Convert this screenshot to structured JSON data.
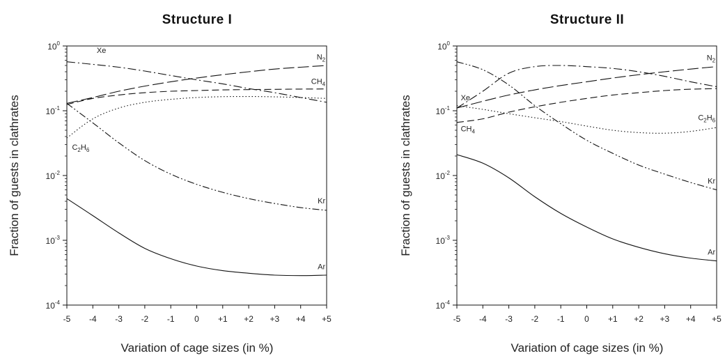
{
  "chart_data": [
    {
      "type": "line",
      "title": "Structure I",
      "xlabel": "Variation of cage sizes (in %)",
      "ylabel": "Fraction of guests in clathrates",
      "x": [
        -5,
        -4,
        -3,
        -2,
        -1,
        0,
        1,
        2,
        3,
        4,
        5
      ],
      "xticks": [
        "-5",
        "-4",
        "-3",
        "-2",
        "-1",
        "0",
        "+1",
        "+2",
        "+3",
        "+4",
        "+5"
      ],
      "ylim": [
        0.0001,
        1
      ],
      "yscale": "log",
      "yticks": [
        {
          "base": "10",
          "exp": "0"
        },
        {
          "base": "10",
          "exp": "-1"
        },
        {
          "base": "10",
          "exp": "-2"
        },
        {
          "base": "10",
          "exp": "-3"
        },
        {
          "base": "10",
          "exp": "-4"
        }
      ],
      "series": [
        {
          "name": "Xe",
          "label": {
            "main": "Xe",
            "sub": ""
          },
          "dash": "dashdot",
          "values": [
            0.57,
            0.52,
            0.47,
            0.41,
            0.35,
            0.3,
            0.26,
            0.22,
            0.19,
            0.16,
            0.135
          ]
        },
        {
          "name": "N2",
          "label": {
            "main": "N",
            "sub": "2"
          },
          "dash": "longdash",
          "values": [
            0.13,
            0.16,
            0.2,
            0.24,
            0.28,
            0.32,
            0.36,
            0.4,
            0.44,
            0.47,
            0.5
          ]
        },
        {
          "name": "CH4",
          "label": {
            "main": "CH",
            "sub": "4"
          },
          "dash": "dash",
          "values": [
            0.125,
            0.155,
            0.175,
            0.19,
            0.2,
            0.205,
            0.21,
            0.212,
            0.214,
            0.216,
            0.217
          ]
        },
        {
          "name": "C2H6",
          "label": {
            "main": "C",
            "sub": "2",
            "main2": "H",
            "sub2": "6"
          },
          "dash": "dot",
          "values": [
            0.038,
            0.075,
            0.11,
            0.135,
            0.15,
            0.16,
            0.165,
            0.166,
            0.164,
            0.16,
            0.155
          ]
        },
        {
          "name": "Kr",
          "label": {
            "main": "Kr",
            "sub": ""
          },
          "dash": "dashdotdot",
          "values": [
            0.13,
            0.065,
            0.032,
            0.017,
            0.0105,
            0.0073,
            0.0055,
            0.0044,
            0.0037,
            0.0032,
            0.0029
          ]
        },
        {
          "name": "Ar",
          "label": {
            "main": "Ar",
            "sub": ""
          },
          "dash": "solid",
          "values": [
            0.0044,
            0.0024,
            0.0013,
            0.00075,
            0.00052,
            0.0004,
            0.00034,
            0.00031,
            0.00029,
            0.000285,
            0.00029
          ]
        }
      ]
    },
    {
      "type": "line",
      "title": "Structure II",
      "xlabel": "Variation of cage sizes (in %)",
      "ylabel": "Fraction of guests in clathrates",
      "x": [
        -5,
        -4,
        -3,
        -2,
        -1,
        0,
        1,
        2,
        3,
        4,
        5
      ],
      "xticks": [
        "-5",
        "-4",
        "-3",
        "-2",
        "-1",
        "0",
        "+1",
        "+2",
        "+3",
        "+4",
        "+5"
      ],
      "ylim": [
        0.0001,
        1
      ],
      "yscale": "log",
      "yticks": [
        {
          "base": "10",
          "exp": "0"
        },
        {
          "base": "10",
          "exp": "-1"
        },
        {
          "base": "10",
          "exp": "-2"
        },
        {
          "base": "10",
          "exp": "-3"
        },
        {
          "base": "10",
          "exp": "-4"
        }
      ],
      "series": [
        {
          "name": "Xe",
          "label": {
            "main": "Xe",
            "sub": ""
          },
          "dash": "dashdot",
          "values": [
            0.11,
            0.2,
            0.38,
            0.48,
            0.5,
            0.48,
            0.45,
            0.4,
            0.34,
            0.28,
            0.235
          ]
        },
        {
          "name": "N2",
          "label": {
            "main": "N",
            "sub": "2"
          },
          "dash": "longdash",
          "values": [
            0.11,
            0.14,
            0.175,
            0.21,
            0.245,
            0.28,
            0.32,
            0.36,
            0.4,
            0.44,
            0.48
          ]
        },
        {
          "name": "CH4",
          "label": {
            "main": "CH",
            "sub": "4"
          },
          "dash": "dash",
          "values": [
            0.066,
            0.075,
            0.095,
            0.115,
            0.135,
            0.155,
            0.175,
            0.19,
            0.205,
            0.215,
            0.22
          ]
        },
        {
          "name": "C2H6",
          "label": {
            "main": "C",
            "sub": "2",
            "main2": "H",
            "sub2": "6"
          },
          "dash": "dot",
          "values": [
            0.12,
            0.105,
            0.09,
            0.078,
            0.068,
            0.058,
            0.05,
            0.046,
            0.045,
            0.048,
            0.055
          ]
        },
        {
          "name": "Kr",
          "label": {
            "main": "Kr",
            "sub": ""
          },
          "dash": "dashdotdot",
          "values": [
            0.57,
            0.43,
            0.25,
            0.12,
            0.063,
            0.035,
            0.022,
            0.0145,
            0.0105,
            0.0078,
            0.006
          ]
        },
        {
          "name": "Ar",
          "label": {
            "main": "Ar",
            "sub": ""
          },
          "dash": "solid",
          "values": [
            0.021,
            0.0155,
            0.0092,
            0.0047,
            0.0026,
            0.0016,
            0.00105,
            0.00078,
            0.00062,
            0.00053,
            0.00048
          ]
        }
      ]
    }
  ]
}
